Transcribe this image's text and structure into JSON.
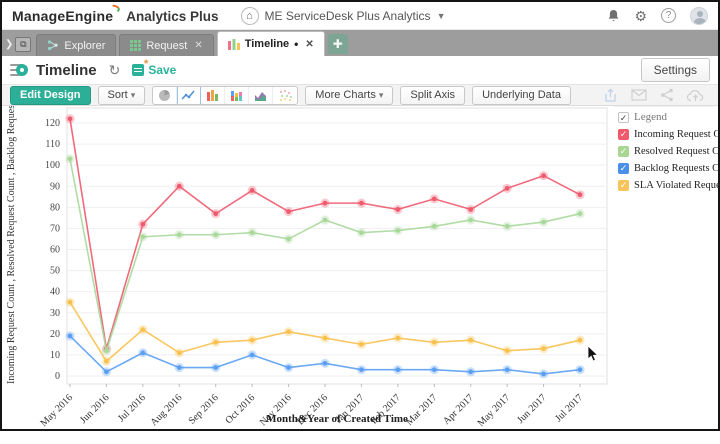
{
  "header": {
    "brand": "ManageEngine",
    "brand_suffix": "Analytics Plus",
    "workspace": "ME ServiceDesk Plus Analytics",
    "icons": [
      "bell-icon",
      "gear-icon",
      "help-icon",
      "avatar"
    ]
  },
  "tabs": [
    {
      "label": "Explorer",
      "icon": "explorer-tree-icon",
      "active": false,
      "closable": false
    },
    {
      "label": "Request",
      "icon": "grid-table-icon",
      "active": false,
      "closable": true
    },
    {
      "label": "Timeline",
      "icon": "bar-chart-icon",
      "active": true,
      "modified": "•",
      "closable": true
    }
  ],
  "view": {
    "title": "Timeline",
    "save_label": "Save",
    "settings_label": "Settings"
  },
  "toolbar": {
    "edit_design": "Edit Design",
    "sort": "Sort",
    "more_charts": "More Charts",
    "split_axis": "Split Axis",
    "underlying_data": "Underlying Data",
    "chart_type_icons": [
      "pie-chart-icon",
      "line-chart-icon",
      "bar-chart-icon",
      "stacked-bar-icon",
      "area-chart-icon",
      "scatter-chart-icon"
    ],
    "right_icons": [
      "export-icon",
      "email-icon",
      "share-icon",
      "cloud-upload-icon"
    ]
  },
  "legend": {
    "title": "Legend",
    "items": [
      {
        "label": "Incoming Request Count",
        "color": "#f0596c"
      },
      {
        "label": "Resolved Request Count",
        "color": "#a8d693"
      },
      {
        "label": "Backlog Requests Count",
        "color": "#4a90e8"
      },
      {
        "label": "SLA Violated Requests",
        "color": "#f9c35c"
      }
    ]
  },
  "chart_data": {
    "type": "line",
    "x": [
      "May 2016",
      "Jun 2016",
      "Jul 2016",
      "Aug 2016",
      "Sep 2016",
      "Oct 2016",
      "Nov 2016",
      "Dec 2016",
      "Jan 2017",
      "Feb 2017",
      "Mar 2017",
      "Apr 2017",
      "May 2017",
      "Jun 2017",
      "Jul 2017"
    ],
    "series": [
      {
        "name": "Incoming Request Count",
        "color": "#ee5a6e",
        "values": [
          122,
          13,
          72,
          90,
          77,
          88,
          78,
          82,
          82,
          79,
          84,
          79,
          89,
          95,
          86
        ]
      },
      {
        "name": "Resolved Request Count",
        "color": "#a9d89b",
        "values": [
          103,
          12,
          66,
          67,
          67,
          68,
          65,
          74,
          68,
          69,
          71,
          74,
          71,
          73,
          77
        ]
      },
      {
        "name": "Backlog Requests Count",
        "color": "#5b9ff2",
        "values": [
          19,
          2,
          11,
          4,
          4,
          10,
          4,
          6,
          3,
          3,
          3,
          2,
          3,
          1,
          3
        ]
      },
      {
        "name": "SLA Violated Requests",
        "color": "#f8c14e",
        "values": [
          35,
          7,
          22,
          11,
          16,
          17,
          21,
          18,
          15,
          18,
          16,
          17,
          12,
          13,
          17
        ]
      }
    ],
    "title": "",
    "xlabel": "Month&Year of Created Time",
    "ylabel": "Incoming Request Count , Resolved Request Count , Backlog Requests Count , SLA Vio",
    "ylim": [
      0,
      125
    ],
    "ytick_step": 10,
    "ytick_max": 120,
    "grid": true,
    "legend_position": "right"
  }
}
